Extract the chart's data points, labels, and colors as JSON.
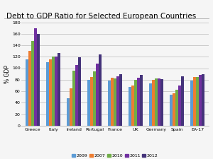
{
  "title": "Debt to GDP Ratio for Selected European Countries",
  "ylabel": "% GDP",
  "categories": [
    "Greece",
    "Italy",
    "Ireland",
    "Portugal",
    "France",
    "UK",
    "Germany",
    "Spain",
    "EA-17"
  ],
  "series_labels": [
    "2009",
    "2007",
    "2010",
    "2011",
    "2012"
  ],
  "bar_colors": [
    "#5b9bd5",
    "#ed7d31",
    "#70ad47",
    "#7030a0",
    "#44337a"
  ],
  "series": {
    "2009": [
      115,
      110,
      48,
      80,
      79,
      68,
      74,
      54,
      79
    ],
    "2007": [
      130,
      116,
      65,
      85,
      83,
      70,
      80,
      56,
      85
    ],
    "2010": [
      148,
      120,
      96,
      94,
      82,
      80,
      82,
      62,
      85
    ],
    "2011": [
      170,
      120,
      106,
      108,
      86,
      84,
      82,
      70,
      88
    ],
    "2012": [
      160,
      127,
      119,
      124,
      90,
      88,
      81,
      86,
      90
    ]
  },
  "ylim": [
    0,
    180
  ],
  "yticks": [
    0,
    20,
    40,
    60,
    80,
    100,
    120,
    140,
    160,
    180
  ],
  "background_color": "#f5f5f5",
  "grid_color": "#bbbbbb",
  "title_fontsize": 7.5,
  "axis_fontsize": 5.5,
  "tick_fontsize": 4.5,
  "legend_fontsize": 4.5
}
